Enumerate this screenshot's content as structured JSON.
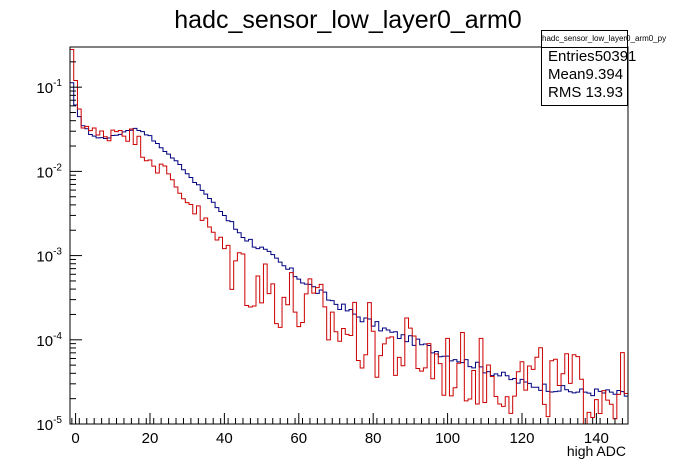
{
  "chart_data": {
    "type": "line",
    "title": "hadc_sensor_low_layer0_arm0",
    "xlabel": "high ADC",
    "ylabel": "",
    "xlim": [
      -1.5,
      148.5
    ],
    "ylim": [
      1e-05,
      0.3
    ],
    "ylog": true,
    "grid": false,
    "xticks": [
      0,
      20,
      40,
      60,
      80,
      100,
      120,
      140
    ],
    "yticks": [
      {
        "value": 1e-05,
        "mantissa": "10",
        "exp": "-5"
      },
      {
        "value": 0.0001,
        "mantissa": "10",
        "exp": "-4"
      },
      {
        "value": 0.001,
        "mantissa": "10",
        "exp": "-3"
      },
      {
        "value": 0.01,
        "mantissa": "10",
        "exp": "-2"
      },
      {
        "value": 0.1,
        "mantissa": "10",
        "exp": "-1"
      }
    ],
    "stats": {
      "name": "hadc_sensor_low_layer0_arm0_py",
      "rows": [
        {
          "label": "Entries",
          "value": "50391"
        },
        {
          "label": "Mean",
          "value": "9.394"
        },
        {
          "label": "RMS",
          "value": "13.93"
        }
      ]
    },
    "series": [
      {
        "color": "#000080",
        "bin_width": 1,
        "x_start": -1.5,
        "knots": [
          [
            -1.5,
            0.15
          ],
          [
            0,
            0.06
          ],
          [
            2,
            0.035
          ],
          [
            4,
            0.028
          ],
          [
            6,
            0.025
          ],
          [
            8,
            0.025
          ],
          [
            10,
            0.026
          ],
          [
            12,
            0.028
          ],
          [
            14,
            0.031
          ],
          [
            16,
            0.032
          ],
          [
            18,
            0.03
          ],
          [
            20,
            0.026
          ],
          [
            22,
            0.021
          ],
          [
            25,
            0.016
          ],
          [
            28,
            0.012
          ],
          [
            31,
            0.0085
          ],
          [
            34,
            0.006
          ],
          [
            37,
            0.0042
          ],
          [
            40,
            0.003
          ],
          [
            43,
            0.0021
          ],
          [
            46,
            0.0016
          ],
          [
            50,
            0.0012
          ],
          [
            55,
            0.0008
          ],
          [
            60,
            0.00055
          ],
          [
            65,
            0.00038
          ],
          [
            70,
            0.00027
          ],
          [
            75,
            0.0002
          ],
          [
            80,
            0.000155
          ],
          [
            85,
            0.00012
          ],
          [
            90,
            0.0001
          ],
          [
            95,
            8e-05
          ],
          [
            100,
            6.5e-05
          ],
          [
            105,
            5.5e-05
          ],
          [
            110,
            4.5e-05
          ],
          [
            115,
            3.7e-05
          ],
          [
            120,
            3.1e-05
          ],
          [
            125,
            2.8e-05
          ],
          [
            130,
            2.6e-05
          ],
          [
            135,
            2.4e-05
          ],
          [
            140,
            2.4e-05
          ],
          [
            145,
            2.3e-05
          ],
          [
            148.5,
            2.2e-05
          ]
        ],
        "noise": 0.05
      },
      {
        "color": "#cc0000",
        "bin_width": 1,
        "x_start": -1.5,
        "knots": [
          [
            -1.5,
            0.05
          ],
          [
            0,
            0.07
          ],
          [
            2,
            0.04
          ],
          [
            4,
            0.03
          ],
          [
            6,
            0.026
          ],
          [
            8,
            0.027
          ],
          [
            10,
            0.031
          ],
          [
            12,
            0.033
          ],
          [
            14,
            0.029
          ],
          [
            16,
            0.024
          ],
          [
            18,
            0.019
          ],
          [
            20,
            0.015
          ],
          [
            22,
            0.012
          ],
          [
            25,
            0.0085
          ],
          [
            28,
            0.006
          ],
          [
            31,
            0.0042
          ],
          [
            34,
            0.0028
          ],
          [
            37,
            0.0018
          ],
          [
            40,
            0.0012
          ],
          [
            43,
            0.0008
          ],
          [
            46,
            0.0006
          ],
          [
            50,
            0.00045
          ],
          [
            55,
            0.00035
          ],
          [
            60,
            0.00025
          ],
          [
            65,
            0.0002
          ],
          [
            70,
            0.00015
          ],
          [
            75,
            0.00012
          ],
          [
            80,
            9.5e-05
          ],
          [
            85,
            8e-05
          ],
          [
            90,
            7e-05
          ],
          [
            95,
            6e-05
          ],
          [
            100,
            5e-05
          ],
          [
            105,
            4.5e-05
          ],
          [
            110,
            4e-05
          ],
          [
            115,
            3.6e-05
          ],
          [
            120,
            3.3e-05
          ],
          [
            125,
            3e-05
          ],
          [
            130,
            2.8e-05
          ],
          [
            135,
            2.7e-05
          ],
          [
            140,
            2.6e-05
          ],
          [
            145,
            2.5e-05
          ],
          [
            148.5,
            2.5e-05
          ]
        ],
        "noise": 0.45,
        "overrides": [
          [
            0,
            0.28
          ],
          [
            1,
            0.12
          ],
          [
            2,
            0.055
          ]
        ]
      }
    ]
  }
}
